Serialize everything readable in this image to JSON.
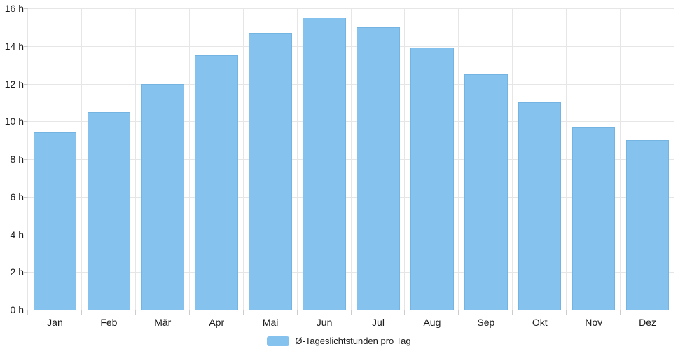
{
  "chart_data": {
    "type": "bar",
    "title": "",
    "xlabel": "",
    "ylabel": "",
    "categories": [
      "Jan",
      "Feb",
      "Mär",
      "Apr",
      "Mai",
      "Jun",
      "Jul",
      "Aug",
      "Sep",
      "Okt",
      "Nov",
      "Dez"
    ],
    "series": [
      {
        "name": "Ø-Tageslichtstunden pro Tag",
        "values": [
          9.4,
          10.5,
          12.0,
          13.5,
          14.7,
          15.5,
          15.0,
          13.9,
          12.5,
          11.0,
          9.7,
          9.0
        ]
      }
    ],
    "ylim": [
      0,
      16
    ],
    "y_tick_step": 2,
    "y_tick_labels": [
      "0 h",
      "2 h",
      "4 h",
      "6 h",
      "8 h",
      "10 h",
      "12 h",
      "14 h",
      "16 h"
    ],
    "grid": true,
    "legend_position": "bottom-center",
    "colors": {
      "bar_fill": "#85C2EE",
      "bar_edge": "#74B4E3",
      "gridline": "#E6E6E6",
      "axis_line": "#CCCCCC",
      "text": "#1A1A1A",
      "background": "#FFFFFF"
    }
  }
}
